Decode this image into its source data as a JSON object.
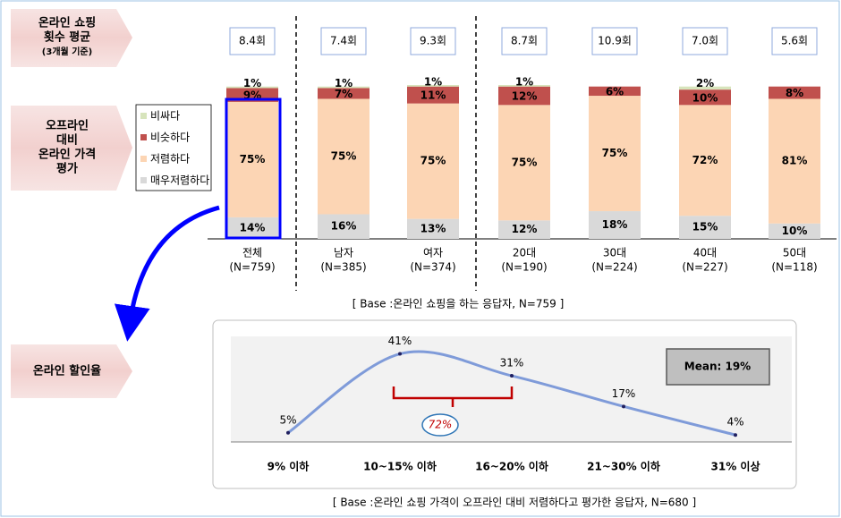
{
  "side_labels": [
    [
      "온라인 쇼핑",
      "횟수 평균",
      "(3개월 기준)"
    ],
    [
      "오프라인",
      "대비",
      "온라인 가격",
      "평가"
    ],
    [
      "온라인 할인율"
    ]
  ],
  "chart_data": [
    {
      "type": "stacked_bar",
      "categories": [
        "전체",
        "남자",
        "여자",
        "20대",
        "30대",
        "40대",
        "50대"
      ],
      "category_notes": [
        "(N=759)",
        "(N=385)",
        "(N=374)",
        "(N=190)",
        "(N=224)",
        "(N=227)",
        "(N=118)"
      ],
      "counts": {
        "values": [
          8.4,
          7.4,
          9.3,
          8.7,
          10.9,
          7.0,
          5.6
        ],
        "value_labels": [
          "8.4회",
          "7.4회",
          "9.3회",
          "8.7회",
          "10.9회",
          "7.0회",
          "5.6회"
        ]
      },
      "series": [
        {
          "name": "매우저렴하다",
          "color": "#d9d9d9",
          "values": [
            14,
            16,
            13,
            12,
            18,
            15,
            10
          ],
          "value_labels": [
            "14%",
            "16%",
            "13%",
            "12%",
            "18%",
            "15%",
            "10%"
          ]
        },
        {
          "name": "저렴하다",
          "color": "#fcd5b4",
          "values": [
            75,
            75,
            75,
            75,
            75,
            72,
            81
          ],
          "value_labels": [
            "75%",
            "75%",
            "75%",
            "75%",
            "75%",
            "72%",
            "81%"
          ]
        },
        {
          "name": "비슷하다",
          "color": "#c0504d",
          "values": [
            9,
            7,
            11,
            12,
            6,
            10,
            8
          ],
          "value_labels": [
            "9%",
            "7%",
            "11%",
            "12%",
            "6%",
            "10%",
            "8%"
          ]
        },
        {
          "name": "비싸다",
          "color": "#d7e4bc",
          "values": [
            1,
            1,
            1,
            1,
            null,
            2,
            null
          ],
          "value_labels": [
            "1%",
            "1%",
            "1%",
            "1%",
            null,
            "2%",
            null
          ]
        }
      ],
      "note": "[ Base :온라인 쇼핑을 하는 응답자, N=759 ]"
    },
    {
      "type": "line",
      "categories": [
        "9% 이하",
        "10~15% 이하",
        "16~20% 이하",
        "21~30% 이하",
        "31% 이상"
      ],
      "values": [
        5,
        41,
        31,
        17,
        4
      ],
      "value_labels": [
        "5%",
        "41%",
        "31%",
        "17%",
        "4%"
      ],
      "color": "#7f9bd9",
      "mean_label": "Mean: 19%",
      "bracket_label": "72%",
      "note": "[ Base :온라인 쇼핑 가격이 오프라인 대비 저렴하다고 평가한 응답자, N=680 ]"
    }
  ]
}
